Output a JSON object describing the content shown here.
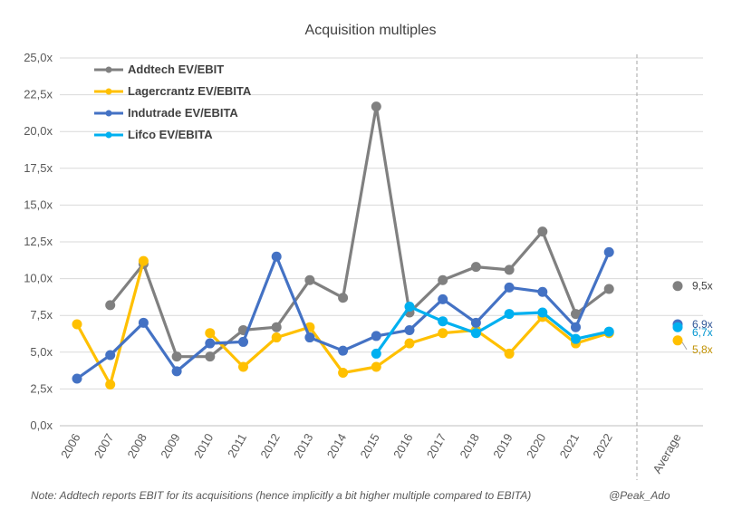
{
  "chart_data": {
    "type": "line",
    "title": "Acquisition multiples",
    "xlabel": "",
    "ylabel": "",
    "categories": [
      "2006",
      "2007",
      "2008",
      "2009",
      "2010",
      "2011",
      "2012",
      "2013",
      "2014",
      "2015",
      "2016",
      "2017",
      "2018",
      "2019",
      "2020",
      "2021",
      "2022"
    ],
    "average_category": "Average",
    "y_ticks": [
      "0,0x",
      "2,5x",
      "5,0x",
      "7,5x",
      "10,0x",
      "12,5x",
      "15,0x",
      "17,5x",
      "20,0x",
      "22,5x",
      "25,0x"
    ],
    "ylim": [
      0,
      25
    ],
    "grid": true,
    "legend_position": "top-left",
    "series": [
      {
        "name": "Addtech EV/EBIT",
        "color": "#808080",
        "values": [
          null,
          8.2,
          11.0,
          4.7,
          4.7,
          6.5,
          6.7,
          9.9,
          8.7,
          21.7,
          7.7,
          9.9,
          10.8,
          10.6,
          13.2,
          7.6,
          9.3
        ],
        "average": 9.5,
        "average_label": "9,5x"
      },
      {
        "name": "Lagercrantz EV/EBITA",
        "color": "#FFC000",
        "values": [
          6.9,
          2.8,
          11.2,
          null,
          6.3,
          4.0,
          6.0,
          6.7,
          3.6,
          4.0,
          5.6,
          6.3,
          6.5,
          4.9,
          7.4,
          5.6,
          6.3
        ],
        "average": 5.8,
        "average_label": "5,8x"
      },
      {
        "name": "Indutrade EV/EBITA",
        "color": "#4472C4",
        "values": [
          3.2,
          4.8,
          7.0,
          3.7,
          5.6,
          5.7,
          11.5,
          6.0,
          5.1,
          6.1,
          6.5,
          8.6,
          7.0,
          9.4,
          9.1,
          6.7,
          11.8
        ],
        "average": 6.9,
        "average_label": "6,9x"
      },
      {
        "name": "Lifco EV/EBITA",
        "color": "#00B0F0",
        "values": [
          null,
          null,
          null,
          null,
          null,
          null,
          null,
          null,
          null,
          4.9,
          8.1,
          7.1,
          6.3,
          7.6,
          7.7,
          5.9,
          6.4
        ],
        "average": 6.7,
        "average_label": "6,7x"
      }
    ]
  },
  "note": "Note: Addtech reports EBIT for its acquisitions (hence implicitly a bit higher multiple compared to EBITA)",
  "credit": "@Peak_Ado"
}
